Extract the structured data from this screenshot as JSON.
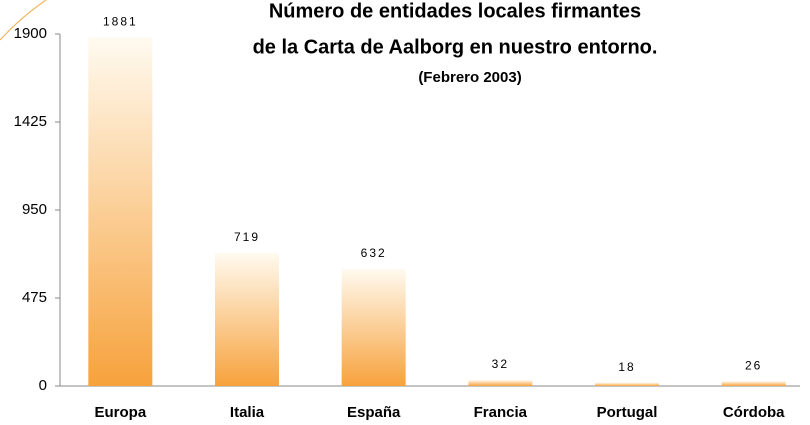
{
  "chart_data": {
    "type": "bar",
    "title": [
      "Número de entidades locales firmantes",
      "de la Carta de Aalborg en nuestro entorno."
    ],
    "subtitle": "(Febrero 2003)",
    "categories": [
      "Europa",
      "Italia",
      "España",
      "Francia",
      "Portugal",
      "Córdoba"
    ],
    "values": [
      1881,
      719,
      632,
      32,
      18,
      26
    ],
    "color": "#f7a23c",
    "ylim": [
      0,
      1900
    ],
    "yticks": [
      0,
      475,
      950,
      1425,
      1900
    ],
    "grid": false
  }
}
